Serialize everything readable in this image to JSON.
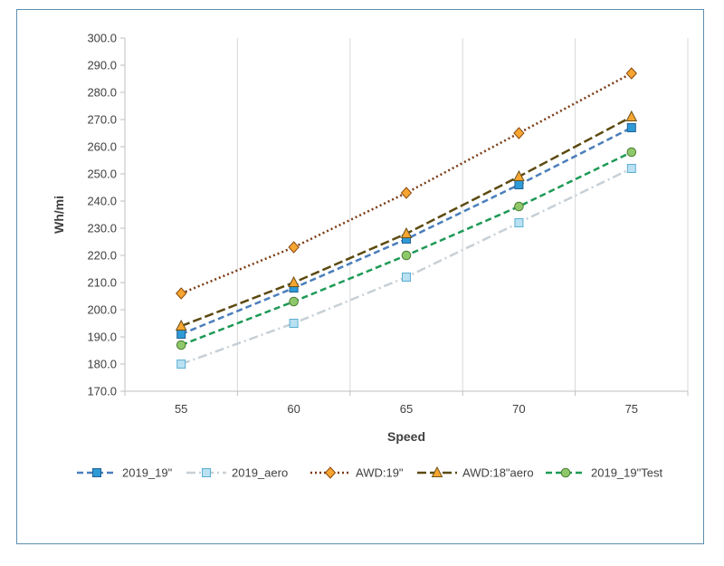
{
  "chart_data": {
    "type": "line",
    "title": "",
    "xlabel": "Speed",
    "ylabel": "Wh/mi",
    "categories": [
      "55",
      "60",
      "65",
      "70",
      "75"
    ],
    "ylim": [
      170,
      300
    ],
    "ytick_step": 10,
    "ytick_labels": [
      "170.0",
      "180.0",
      "190.0",
      "200.0",
      "210.0",
      "220.0",
      "230.0",
      "240.0",
      "250.0",
      "260.0",
      "270.0",
      "280.0",
      "290.0",
      "300.0"
    ],
    "grid": "vertical",
    "legend_position": "bottom",
    "series": [
      {
        "name": "2019_19\"",
        "values": [
          191,
          208,
          226,
          246,
          267
        ],
        "color": "#4a7ebb",
        "marker": "square",
        "marker_fill": "#2e9bd6",
        "marker_stroke": "#1f5f95",
        "dash": "7,4"
      },
      {
        "name": "2019_aero",
        "values": [
          180,
          195,
          212,
          232,
          252
        ],
        "color": "#c7d0d6",
        "marker": "square",
        "marker_fill": "#b9e1f2",
        "marker_stroke": "#5aaed2",
        "dash": "10,4,2,4"
      },
      {
        "name": "AWD:19\"",
        "values": [
          206,
          223,
          243,
          265,
          287
        ],
        "color": "#7a3a12",
        "marker": "diamond",
        "marker_fill": "#f7a531",
        "marker_stroke": "#8a4a10",
        "dash": "2,3"
      },
      {
        "name": "AWD:18\"aero",
        "values": [
          194,
          210,
          228,
          249,
          271
        ],
        "color": "#5c4a10",
        "marker": "triangle",
        "marker_fill": "#f7a531",
        "marker_stroke": "#6b5216",
        "dash": "10,4"
      },
      {
        "name": "2019_19\"Test",
        "values": [
          187,
          203,
          220,
          238,
          258
        ],
        "color": "#1e9a56",
        "marker": "circle",
        "marker_fill": "#8fc86a",
        "marker_stroke": "#4e7d34",
        "dash": "7,4"
      }
    ]
  }
}
